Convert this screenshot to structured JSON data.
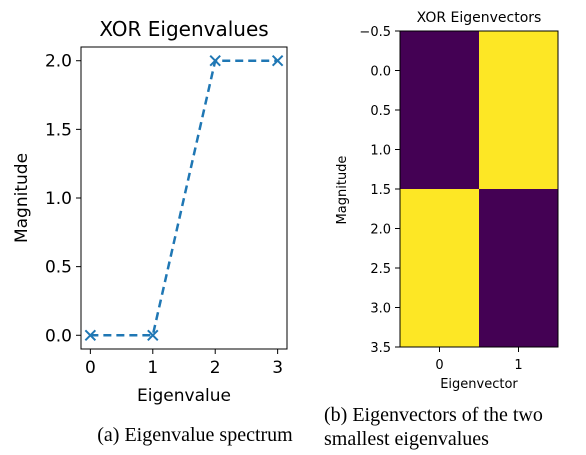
{
  "chart_data": [
    {
      "type": "line",
      "title": "XOR Eigenvalues",
      "xlabel": "Eigenvalue",
      "ylabel": "Magnitude",
      "x": [
        0,
        1,
        2,
        3
      ],
      "series": [
        {
          "values": [
            0.0,
            0.0,
            2.0,
            2.0
          ],
          "color": "#1f77b4",
          "line_style": "dashed",
          "marker": "x"
        }
      ],
      "xlim": [
        -0.15,
        3.15
      ],
      "ylim": [
        -0.1,
        2.1
      ],
      "xticks": [
        "0",
        "1",
        "2",
        "3"
      ],
      "yticks": [
        "0.0",
        "0.5",
        "1.0",
        "1.5",
        "2.0"
      ],
      "grid": false,
      "caption": "(a) Eigenvalue spectrum"
    },
    {
      "type": "heatmap",
      "title": "XOR Eigenvectors",
      "xlabel": "Eigenvector",
      "ylabel": "Magnitude",
      "columns": [
        0,
        1
      ],
      "row_edges": [
        -0.5,
        1.5,
        3.5
      ],
      "cells": [
        [
          0,
          1
        ],
        [
          1,
          0
        ]
      ],
      "colormap": {
        "low": "#440154",
        "high": "#fde725"
      },
      "xlim": [
        -0.5,
        1.5
      ],
      "ylim": [
        3.5,
        -0.5
      ],
      "xticks": [
        "0",
        "1"
      ],
      "yticks": [
        "−0.5",
        "0.0",
        "0.5",
        "1.0",
        "1.5",
        "2.0",
        "2.5",
        "3.0",
        "3.5"
      ],
      "caption_lines": [
        "(b) Eigenvectors of the two",
        "smallest eigenvalues"
      ]
    }
  ]
}
